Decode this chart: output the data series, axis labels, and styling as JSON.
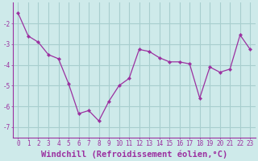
{
  "x": [
    0,
    1,
    2,
    3,
    4,
    5,
    6,
    7,
    8,
    9,
    10,
    11,
    12,
    13,
    14,
    15,
    16,
    17,
    18,
    19,
    20,
    21,
    22,
    23
  ],
  "y": [
    -1.5,
    -2.6,
    -2.9,
    -3.5,
    -3.7,
    -4.9,
    -6.35,
    -6.2,
    -6.7,
    -5.75,
    -5.0,
    -4.65,
    -3.25,
    -3.35,
    -3.65,
    -3.85,
    -3.85,
    -3.95,
    -5.6,
    -4.1,
    -4.35,
    -4.2,
    -2.55,
    -3.25
  ],
  "line_color": "#9b30a0",
  "marker_color": "#9b30a0",
  "bg_color": "#ceeaea",
  "grid_color": "#a8cece",
  "xlabel": "Windchill (Refroidissement éolien,°C)",
  "ylim": [
    -7.5,
    -1.0
  ],
  "xlim": [
    -0.5,
    23.5
  ],
  "yticks": [
    -7,
    -6,
    -5,
    -4,
    -3,
    -2
  ],
  "xtick_labels": [
    "0",
    "1",
    "2",
    "3",
    "4",
    "5",
    "6",
    "7",
    "8",
    "9",
    "10",
    "11",
    "12",
    "13",
    "14",
    "15",
    "16",
    "17",
    "18",
    "19",
    "20",
    "21",
    "22",
    "23"
  ],
  "tick_fontsize": 5.5,
  "xlabel_fontsize": 7.5
}
